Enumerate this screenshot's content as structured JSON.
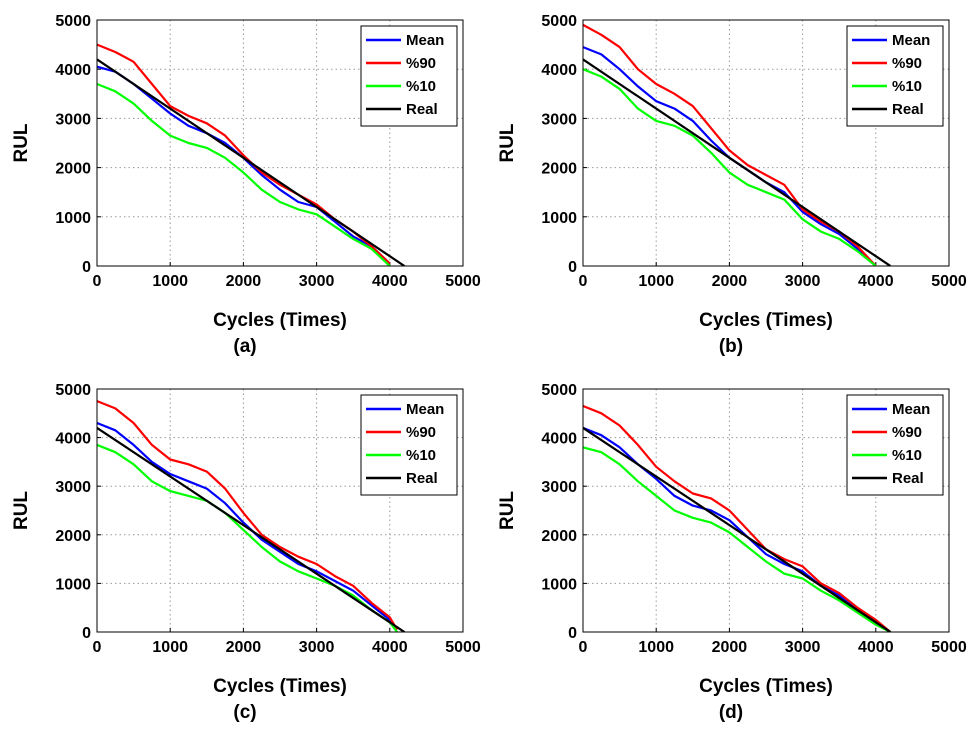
{
  "colors": {
    "mean": "#0000ff",
    "p90": "#ff0000",
    "p10": "#00ff00",
    "real": "#000000"
  },
  "chart_data": [
    {
      "type": "line",
      "panel_label": "(a)",
      "xlabel": "Cycles (Times)",
      "ylabel": "RUL",
      "xlim": [
        0,
        5000
      ],
      "ylim": [
        0,
        5000
      ],
      "xticks": [
        "0",
        "1000",
        "2000",
        "3000",
        "4000",
        "5000"
      ],
      "yticks": [
        "0",
        "1000",
        "2000",
        "3000",
        "4000",
        "5000"
      ],
      "grid": true,
      "legend_position": "top-right",
      "series": [
        {
          "name": "Mean",
          "color": "#0000ff",
          "points": [
            [
              0,
              4050
            ],
            [
              250,
              3950
            ],
            [
              500,
              3700
            ],
            [
              750,
              3400
            ],
            [
              1000,
              3100
            ],
            [
              1250,
              2850
            ],
            [
              1500,
              2700
            ],
            [
              1750,
              2500
            ],
            [
              2000,
              2200
            ],
            [
              2250,
              1850
            ],
            [
              2500,
              1550
            ],
            [
              2750,
              1300
            ],
            [
              3000,
              1200
            ],
            [
              3250,
              900
            ],
            [
              3500,
              600
            ],
            [
              3750,
              400
            ],
            [
              4000,
              50
            ]
          ]
        },
        {
          "name": "%90",
          "color": "#ff0000",
          "points": [
            [
              0,
              4500
            ],
            [
              250,
              4350
            ],
            [
              500,
              4150
            ],
            [
              750,
              3700
            ],
            [
              1000,
              3250
            ],
            [
              1250,
              3050
            ],
            [
              1500,
              2900
            ],
            [
              1750,
              2650
            ],
            [
              2000,
              2250
            ],
            [
              2250,
              1900
            ],
            [
              2500,
              1650
            ],
            [
              2750,
              1450
            ],
            [
              3000,
              1250
            ],
            [
              3250,
              950
            ],
            [
              3500,
              700
            ],
            [
              3750,
              400
            ],
            [
              4000,
              50
            ]
          ]
        },
        {
          "name": "%10",
          "color": "#00ff00",
          "points": [
            [
              0,
              3700
            ],
            [
              250,
              3550
            ],
            [
              500,
              3300
            ],
            [
              750,
              2950
            ],
            [
              1000,
              2650
            ],
            [
              1250,
              2500
            ],
            [
              1500,
              2400
            ],
            [
              1750,
              2200
            ],
            [
              2000,
              1900
            ],
            [
              2250,
              1550
            ],
            [
              2500,
              1300
            ],
            [
              2750,
              1150
            ],
            [
              3000,
              1050
            ],
            [
              3250,
              800
            ],
            [
              3500,
              550
            ],
            [
              3750,
              350
            ],
            [
              4000,
              0
            ]
          ]
        },
        {
          "name": "Real",
          "color": "#000000",
          "points": [
            [
              0,
              4200
            ],
            [
              4200,
              0
            ]
          ]
        }
      ]
    },
    {
      "type": "line",
      "panel_label": "(b)",
      "xlabel": "Cycles (Times)",
      "ylabel": "RUL",
      "xlim": [
        0,
        5000
      ],
      "ylim": [
        0,
        5000
      ],
      "xticks": [
        "0",
        "1000",
        "2000",
        "3000",
        "4000",
        "5000"
      ],
      "yticks": [
        "0",
        "1000",
        "2000",
        "3000",
        "4000",
        "5000"
      ],
      "grid": true,
      "legend_position": "top-right",
      "series": [
        {
          "name": "Mean",
          "color": "#0000ff",
          "points": [
            [
              0,
              4450
            ],
            [
              250,
              4300
            ],
            [
              500,
              4000
            ],
            [
              750,
              3650
            ],
            [
              1000,
              3350
            ],
            [
              1250,
              3200
            ],
            [
              1500,
              2950
            ],
            [
              1750,
              2550
            ],
            [
              2000,
              2200
            ],
            [
              2250,
              1950
            ],
            [
              2500,
              1700
            ],
            [
              2750,
              1500
            ],
            [
              3000,
              1100
            ],
            [
              3250,
              850
            ],
            [
              3500,
              650
            ],
            [
              3750,
              350
            ],
            [
              4000,
              0
            ]
          ]
        },
        {
          "name": "%90",
          "color": "#ff0000",
          "points": [
            [
              0,
              4900
            ],
            [
              250,
              4700
            ],
            [
              500,
              4450
            ],
            [
              750,
              4000
            ],
            [
              1000,
              3700
            ],
            [
              1250,
              3500
            ],
            [
              1500,
              3250
            ],
            [
              1750,
              2800
            ],
            [
              2000,
              2350
            ],
            [
              2250,
              2050
            ],
            [
              2500,
              1850
            ],
            [
              2750,
              1650
            ],
            [
              3000,
              1150
            ],
            [
              3250,
              900
            ],
            [
              3500,
              700
            ],
            [
              3750,
              400
            ],
            [
              4000,
              0
            ]
          ]
        },
        {
          "name": "%10",
          "color": "#00ff00",
          "points": [
            [
              0,
              4000
            ],
            [
              250,
              3850
            ],
            [
              500,
              3600
            ],
            [
              750,
              3200
            ],
            [
              1000,
              2950
            ],
            [
              1250,
              2850
            ],
            [
              1500,
              2650
            ],
            [
              1750,
              2300
            ],
            [
              2000,
              1900
            ],
            [
              2250,
              1650
            ],
            [
              2500,
              1500
            ],
            [
              2750,
              1350
            ],
            [
              3000,
              950
            ],
            [
              3250,
              700
            ],
            [
              3500,
              550
            ],
            [
              3750,
              300
            ],
            [
              4000,
              0
            ]
          ]
        },
        {
          "name": "Real",
          "color": "#000000",
          "points": [
            [
              0,
              4200
            ],
            [
              4200,
              0
            ]
          ]
        }
      ]
    },
    {
      "type": "line",
      "panel_label": "(c)",
      "xlabel": "Cycles (Times)",
      "ylabel": "RUL",
      "xlim": [
        0,
        5000
      ],
      "ylim": [
        0,
        5000
      ],
      "xticks": [
        "0",
        "1000",
        "2000",
        "3000",
        "4000",
        "5000"
      ],
      "yticks": [
        "0",
        "1000",
        "2000",
        "3000",
        "4000",
        "5000"
      ],
      "grid": true,
      "legend_position": "top-right",
      "series": [
        {
          "name": "Mean",
          "color": "#0000ff",
          "points": [
            [
              0,
              4300
            ],
            [
              250,
              4150
            ],
            [
              500,
              3850
            ],
            [
              750,
              3500
            ],
            [
              1000,
              3250
            ],
            [
              1250,
              3100
            ],
            [
              1500,
              2950
            ],
            [
              1750,
              2650
            ],
            [
              2000,
              2250
            ],
            [
              2250,
              1900
            ],
            [
              2500,
              1650
            ],
            [
              2750,
              1400
            ],
            [
              3000,
              1250
            ],
            [
              3250,
              1050
            ],
            [
              3500,
              850
            ],
            [
              3750,
              550
            ],
            [
              4000,
              250
            ],
            [
              4100,
              50
            ]
          ]
        },
        {
          "name": "%90",
          "color": "#ff0000",
          "points": [
            [
              0,
              4750
            ],
            [
              250,
              4600
            ],
            [
              500,
              4300
            ],
            [
              750,
              3850
            ],
            [
              1000,
              3550
            ],
            [
              1250,
              3450
            ],
            [
              1500,
              3300
            ],
            [
              1750,
              2950
            ],
            [
              2000,
              2450
            ],
            [
              2250,
              2000
            ],
            [
              2500,
              1750
            ],
            [
              2750,
              1550
            ],
            [
              3000,
              1400
            ],
            [
              3250,
              1150
            ],
            [
              3500,
              950
            ],
            [
              3750,
              600
            ],
            [
              4000,
              300
            ],
            [
              4100,
              50
            ]
          ]
        },
        {
          "name": "%10",
          "color": "#00ff00",
          "points": [
            [
              0,
              3850
            ],
            [
              250,
              3700
            ],
            [
              500,
              3450
            ],
            [
              750,
              3100
            ],
            [
              1000,
              2900
            ],
            [
              1250,
              2800
            ],
            [
              1500,
              2700
            ],
            [
              1750,
              2450
            ],
            [
              2000,
              2100
            ],
            [
              2250,
              1750
            ],
            [
              2500,
              1450
            ],
            [
              2750,
              1250
            ],
            [
              3000,
              1100
            ],
            [
              3250,
              950
            ],
            [
              3500,
              750
            ],
            [
              3750,
              450
            ],
            [
              4000,
              200
            ],
            [
              4100,
              0
            ]
          ]
        },
        {
          "name": "Real",
          "color": "#000000",
          "points": [
            [
              0,
              4200
            ],
            [
              4200,
              0
            ]
          ]
        }
      ]
    },
    {
      "type": "line",
      "panel_label": "(d)",
      "xlabel": "Cycles (Times)",
      "ylabel": "RUL",
      "xlim": [
        0,
        5000
      ],
      "ylim": [
        0,
        5000
      ],
      "xticks": [
        "0",
        "1000",
        "2000",
        "3000",
        "4000",
        "5000"
      ],
      "yticks": [
        "0",
        "1000",
        "2000",
        "3000",
        "4000",
        "5000"
      ],
      "grid": true,
      "legend_position": "top-right",
      "series": [
        {
          "name": "Mean",
          "color": "#0000ff",
          "points": [
            [
              0,
              4200
            ],
            [
              250,
              4050
            ],
            [
              500,
              3800
            ],
            [
              750,
              3450
            ],
            [
              1000,
              3150
            ],
            [
              1250,
              2800
            ],
            [
              1500,
              2600
            ],
            [
              1750,
              2500
            ],
            [
              2000,
              2300
            ],
            [
              2250,
              1950
            ],
            [
              2500,
              1600
            ],
            [
              2750,
              1400
            ],
            [
              3000,
              1250
            ],
            [
              3250,
              950
            ],
            [
              3500,
              750
            ],
            [
              3750,
              450
            ],
            [
              4000,
              200
            ],
            [
              4200,
              0
            ]
          ]
        },
        {
          "name": "%90",
          "color": "#ff0000",
          "points": [
            [
              0,
              4650
            ],
            [
              250,
              4500
            ],
            [
              500,
              4250
            ],
            [
              750,
              3850
            ],
            [
              1000,
              3400
            ],
            [
              1250,
              3100
            ],
            [
              1500,
              2850
            ],
            [
              1750,
              2750
            ],
            [
              2000,
              2500
            ],
            [
              2250,
              2100
            ],
            [
              2500,
              1700
            ],
            [
              2750,
              1500
            ],
            [
              3000,
              1350
            ],
            [
              3250,
              1000
            ],
            [
              3500,
              800
            ],
            [
              3750,
              500
            ],
            [
              4000,
              250
            ],
            [
              4200,
              0
            ]
          ]
        },
        {
          "name": "%10",
          "color": "#00ff00",
          "points": [
            [
              0,
              3800
            ],
            [
              250,
              3700
            ],
            [
              500,
              3450
            ],
            [
              750,
              3100
            ],
            [
              1000,
              2800
            ],
            [
              1250,
              2500
            ],
            [
              1500,
              2350
            ],
            [
              1750,
              2250
            ],
            [
              2000,
              2050
            ],
            [
              2250,
              1750
            ],
            [
              2500,
              1450
            ],
            [
              2750,
              1200
            ],
            [
              3000,
              1100
            ],
            [
              3250,
              850
            ],
            [
              3500,
              650
            ],
            [
              3750,
              400
            ],
            [
              4000,
              150
            ],
            [
              4200,
              0
            ]
          ]
        },
        {
          "name": "Real",
          "color": "#000000",
          "points": [
            [
              0,
              4200
            ],
            [
              4200,
              0
            ]
          ]
        }
      ]
    }
  ]
}
